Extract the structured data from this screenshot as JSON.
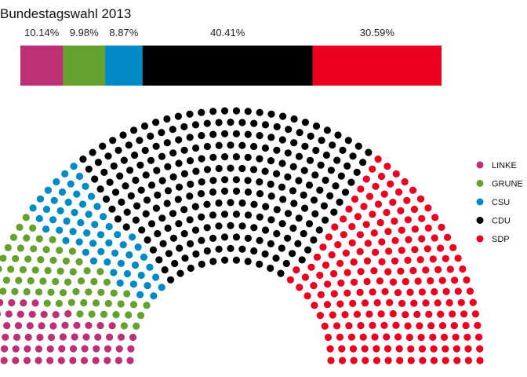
{
  "chart_data": {
    "type": "parliament",
    "title": "Bundestagswahl 2013",
    "parties": [
      {
        "name": "LINKE",
        "percent": 10.14,
        "label": "10.14%",
        "color": "#BE3075"
      },
      {
        "name": "GRUNE",
        "percent": 9.98,
        "label": "9.98%",
        "color": "#64A12D"
      },
      {
        "name": "CSU",
        "percent": 8.87,
        "label": "8.87%",
        "color": "#008AC5"
      },
      {
        "name": "CDU",
        "percent": 40.41,
        "label": "40.41%",
        "color": "#000000"
      },
      {
        "name": "SDP",
        "percent": 30.59,
        "label": "30.59%",
        "color": "#EB001F"
      }
    ],
    "legend_position": "right",
    "grid": false
  }
}
